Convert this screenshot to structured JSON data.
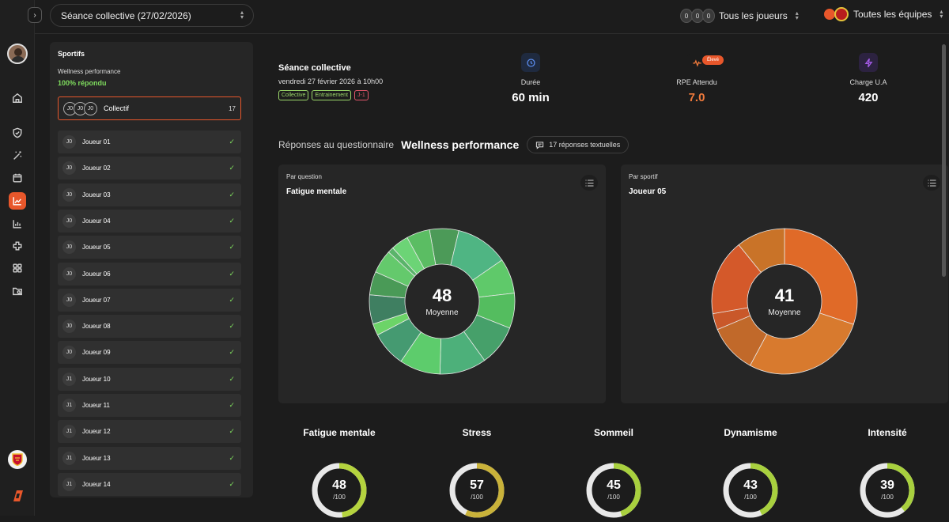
{
  "topbar": {
    "expand_icon": "chevron-right-icon",
    "session_select": "Séance collective (27/02/2026)",
    "players": {
      "avatars": [
        "0",
        "0",
        "0"
      ],
      "label": "Tous les joueurs"
    },
    "teams": {
      "label": "Toutes les équipes"
    }
  },
  "rail": {
    "items": [
      "home-icon",
      "shield-icon",
      "wand-icon",
      "calendar-icon",
      "trend-chart-icon",
      "bar-chart-icon",
      "plus-cross-icon",
      "grid-icon",
      "folder-search-icon"
    ],
    "active": "trend-chart-icon"
  },
  "sportifs": {
    "title": "Sportifs",
    "questionnaire": "Wellness performance",
    "response_rate": "100% répondu",
    "collectif": {
      "avatars": [
        "J0",
        "J0",
        "J0"
      ],
      "label": "Collectif",
      "count": "17"
    },
    "players": [
      {
        "initials": "J0",
        "name": "Joueur 01"
      },
      {
        "initials": "J0",
        "name": "Joueur 02"
      },
      {
        "initials": "J0",
        "name": "Joueur 03"
      },
      {
        "initials": "J0",
        "name": "Joueur 04"
      },
      {
        "initials": "J0",
        "name": "Joueur 05"
      },
      {
        "initials": "J0",
        "name": "Joueur 06"
      },
      {
        "initials": "J0",
        "name": "Joueur 07"
      },
      {
        "initials": "J0",
        "name": "Joueur 08"
      },
      {
        "initials": "J0",
        "name": "Joueur 09"
      },
      {
        "initials": "J1",
        "name": "Joueur 10"
      },
      {
        "initials": "J1",
        "name": "Joueur 11"
      },
      {
        "initials": "J1",
        "name": "Joueur 12"
      },
      {
        "initials": "J1",
        "name": "Joueur 13"
      },
      {
        "initials": "J1",
        "name": "Joueur 14"
      }
    ]
  },
  "session": {
    "title": "Séance collective",
    "date": "vendredi 27 février 2026 à 10h00",
    "tags": [
      {
        "label": "Collective",
        "color": "#9bd86a"
      },
      {
        "label": "Entrainement",
        "color": "#9bd86a"
      },
      {
        "label": "J-1",
        "color": "#e0566a"
      }
    ]
  },
  "stats": [
    {
      "icon": "clock-icon",
      "label": "Durée",
      "value": "60 min",
      "color": "#ffffff",
      "icon_color": "#5b8def"
    },
    {
      "icon": "pulse-icon",
      "label": "RPE Attendu",
      "value": "7.0",
      "color": "#f07a3c",
      "icon_color": "#f07a3c",
      "badge": "Élevé"
    },
    {
      "icon": "bolt-icon",
      "label": "Charge U.A",
      "value": "420",
      "color": "#ffffff",
      "icon_color": "#a55be8"
    }
  ],
  "questionnaire": {
    "prefix": "Réponses au questionnaire",
    "name": "Wellness performance",
    "text_responses": "17 réponses textuelles"
  },
  "cards": [
    {
      "subtitle": "Par question",
      "title": "Fatigue mentale",
      "center_value": "48",
      "center_label": "Moyenne",
      "segments": [
        {
          "value": 5,
          "color": "#4c9a58"
        },
        {
          "value": 9,
          "color": "#4fb583"
        },
        {
          "value": 6,
          "color": "#5fc96a"
        },
        {
          "value": 6,
          "color": "#54bd5f"
        },
        {
          "value": 7,
          "color": "#46a06a"
        },
        {
          "value": 8,
          "color": "#4db07a"
        },
        {
          "value": 7,
          "color": "#5dcc6c"
        },
        {
          "value": 6,
          "color": "#459a71"
        },
        {
          "value": 2,
          "color": "#6cd468"
        },
        {
          "value": 5,
          "color": "#3f7f61"
        },
        {
          "value": 4,
          "color": "#4a9a57"
        },
        {
          "value": 4,
          "color": "#64c96c"
        },
        {
          "value": 1,
          "color": "#5ab46a"
        },
        {
          "value": 3,
          "color": "#6cd476"
        },
        {
          "value": 4,
          "color": "#5bbd63"
        }
      ]
    },
    {
      "subtitle": "Par sportif",
      "title": "Joueur 05",
      "center_value": "41",
      "center_label": "Moyenne",
      "segments": [
        {
          "value": 25,
          "color": "#e06a28"
        },
        {
          "value": 23,
          "color": "#d87a2e"
        },
        {
          "value": 9,
          "color": "#c1692a"
        },
        {
          "value": 3,
          "color": "#c9582a"
        },
        {
          "value": 14,
          "color": "#d4592a"
        },
        {
          "value": 9,
          "color": "#c97328"
        }
      ]
    }
  ],
  "metrics": [
    {
      "label": "Fatigue mentale",
      "value": "48",
      "denom": "/100",
      "fraction": 0.48,
      "color": "#b5d33e"
    },
    {
      "label": "Stress",
      "value": "57",
      "denom": "/100",
      "fraction": 0.57,
      "color": "#c9b23a"
    },
    {
      "label": "Sommeil",
      "value": "45",
      "denom": "/100",
      "fraction": 0.45,
      "color": "#a8d03e"
    },
    {
      "label": "Dynamisme",
      "value": "43",
      "denom": "/100",
      "fraction": 0.43,
      "color": "#a8d03e"
    },
    {
      "label": "Intensité",
      "value": "39",
      "denom": "/100",
      "fraction": 0.39,
      "color": "#a8d03e"
    }
  ]
}
